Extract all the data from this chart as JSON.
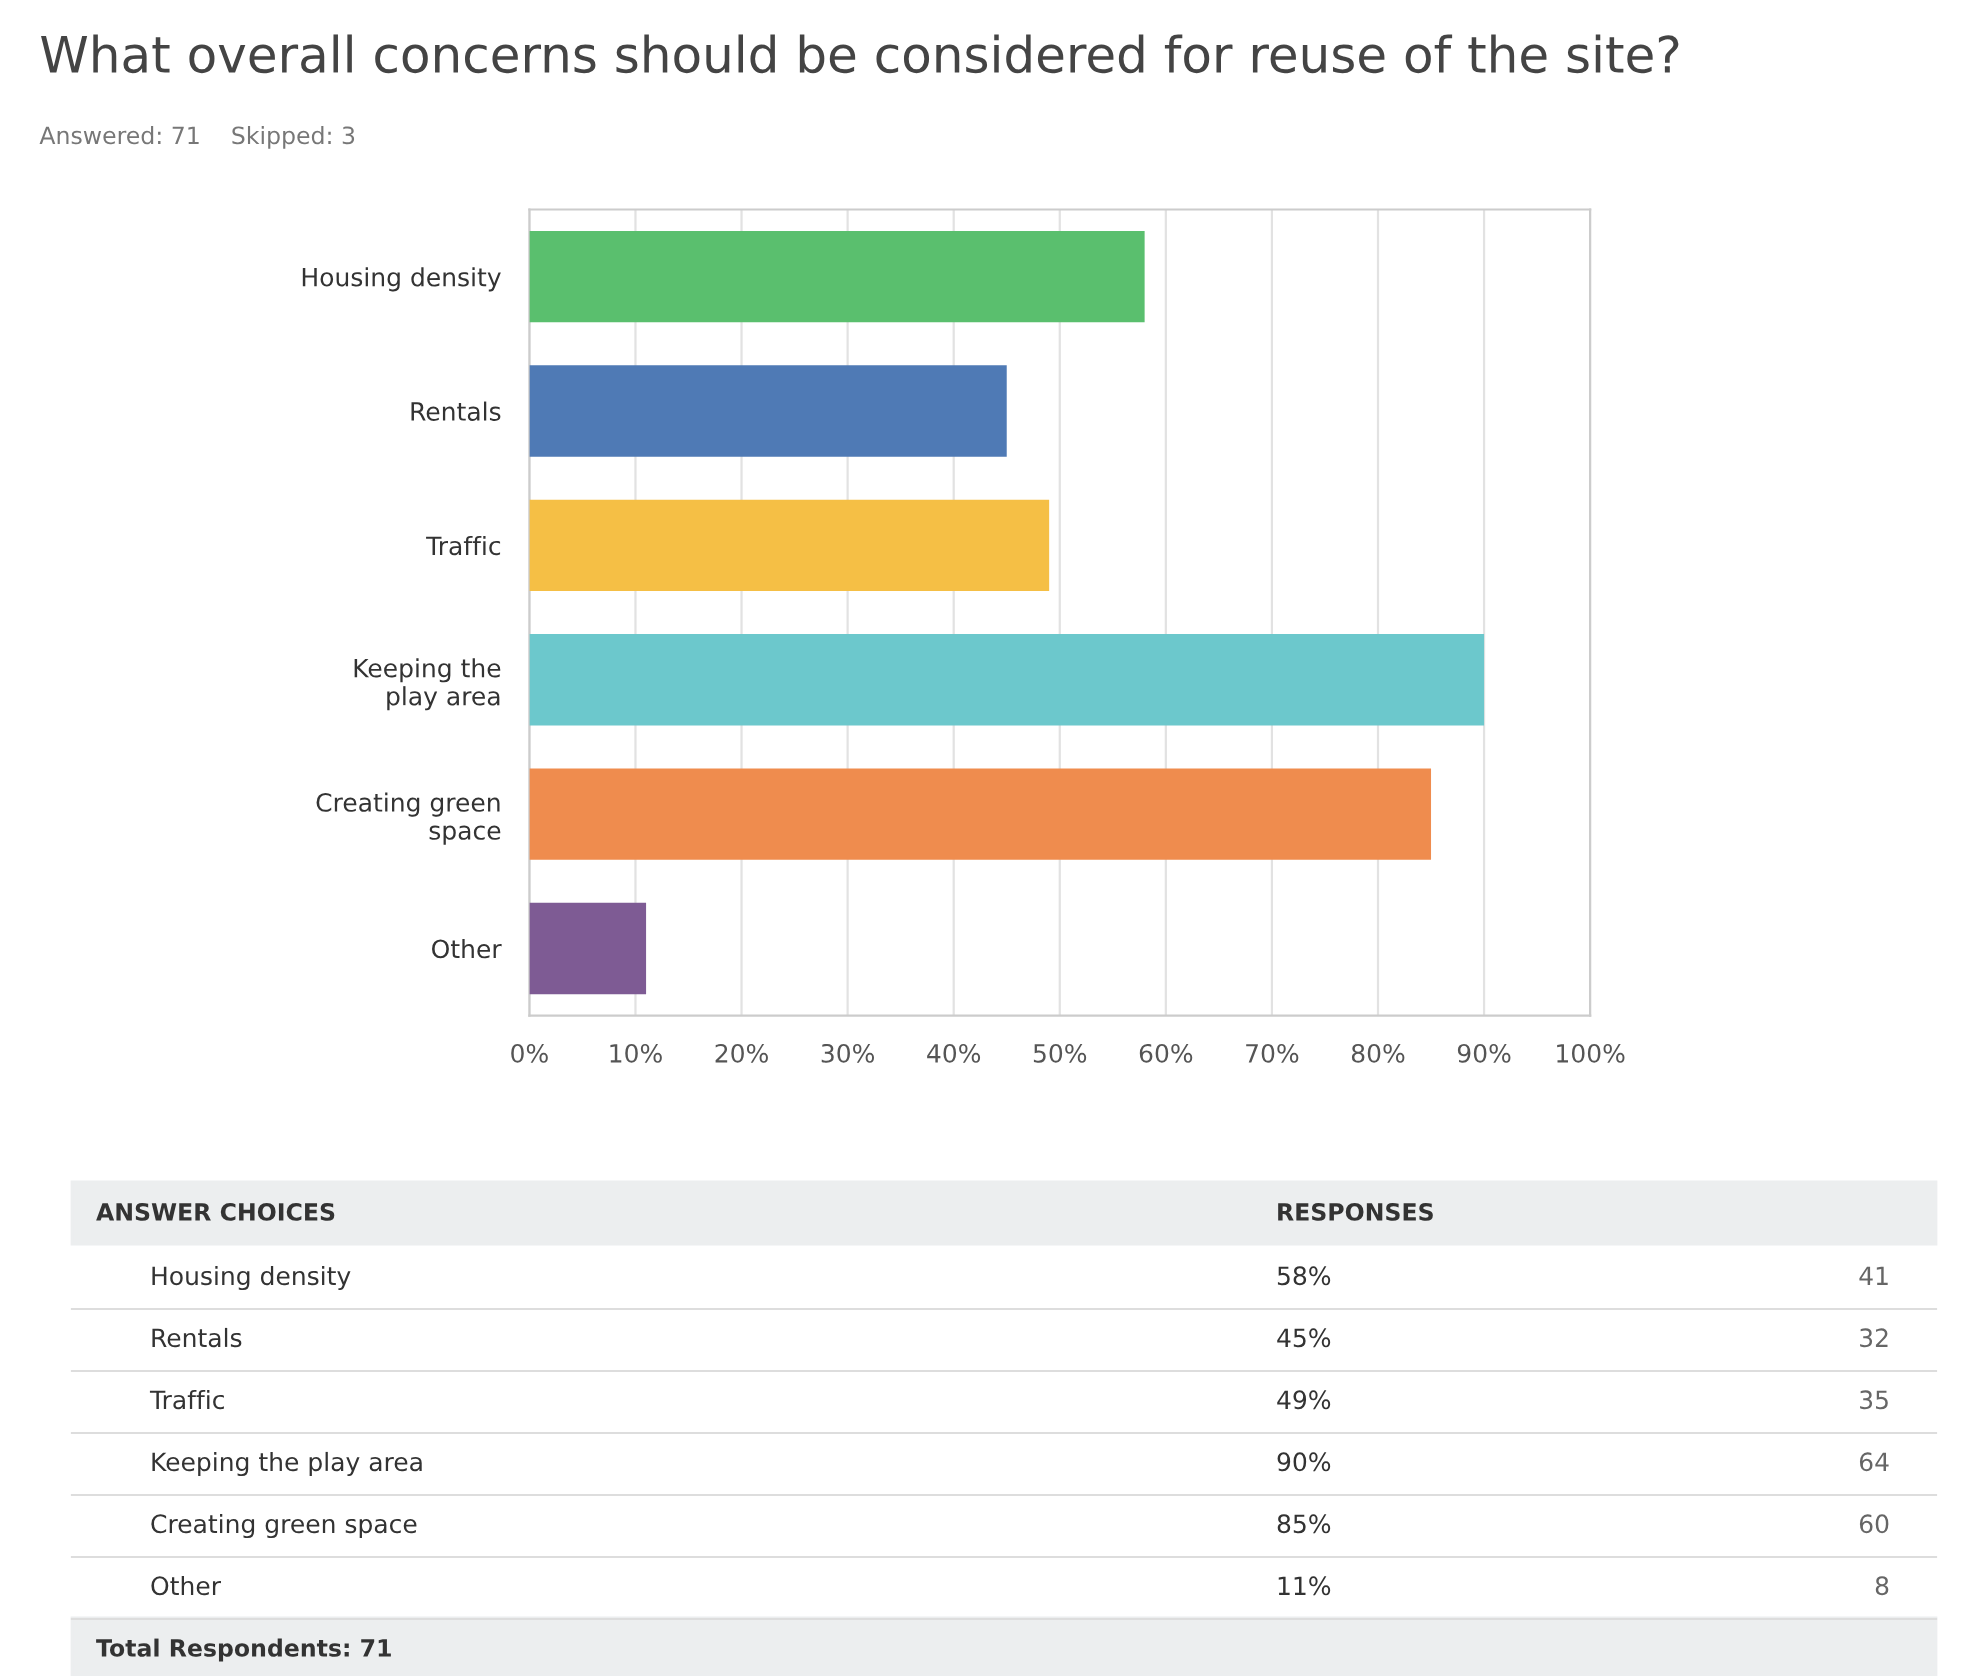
{
  "chart_data": {
    "type": "bar",
    "orientation": "horizontal",
    "title": "What overall concerns should be considered for reuse of the site?",
    "subtitle": "Answered: 71    Skipped: 3",
    "categories": [
      "Housing density",
      "Rentals",
      "Traffic",
      "Keeping the play area",
      "Creating green space",
      "Other"
    ],
    "values": [
      58,
      45,
      49,
      90,
      85,
      11
    ],
    "colors": [
      "#5abf6e",
      "#4f7ab5",
      "#f5bf45",
      "#6cc8cc",
      "#ef8c4e",
      "#7e5b94"
    ],
    "xlim": [
      0,
      100
    ],
    "xticks": [
      {
        "value": 0,
        "label": "0%"
      },
      {
        "value": 10,
        "label": "10%"
      },
      {
        "value": 20,
        "label": "20%"
      },
      {
        "value": 30,
        "label": "30%"
      },
      {
        "value": 40,
        "label": "40%"
      },
      {
        "value": 50,
        "label": "50%"
      },
      {
        "value": 60,
        "label": "60%"
      },
      {
        "value": 70,
        "label": "70%"
      },
      {
        "value": 80,
        "label": "80%"
      },
      {
        "value": 90,
        "label": "90%"
      },
      {
        "value": 100,
        "label": "100%"
      }
    ],
    "grid": "x",
    "annotations": [
      "ANSWER CHOICES",
      "RESPONSES",
      "58%",
      "41",
      "45%",
      "32",
      "49%",
      "35",
      "90%",
      "64",
      "85%",
      "60",
      "11%",
      "8",
      "Total Respondents: 71"
    ]
  }
}
